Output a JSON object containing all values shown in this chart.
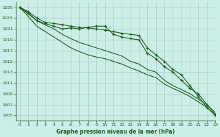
{
  "title": "Graphe pression niveau de la mer (hPa)",
  "background_color": "#cceee8",
  "grid_color": "#b0c8c8",
  "line_color": "#1a5c1a",
  "xlim": [
    -0.5,
    23
  ],
  "ylim": [
    1004,
    1026
  ],
  "yticks": [
    1005,
    1007,
    1009,
    1011,
    1013,
    1015,
    1017,
    1019,
    1021,
    1023,
    1025
  ],
  "xticks": [
    0,
    1,
    2,
    3,
    4,
    5,
    6,
    7,
    8,
    9,
    10,
    11,
    12,
    13,
    14,
    15,
    16,
    17,
    18,
    19,
    20,
    21,
    22,
    23
  ],
  "line1_x": [
    0,
    1,
    2,
    3,
    4,
    5,
    6,
    7,
    8,
    9,
    10,
    11,
    12,
    13,
    14,
    15,
    16,
    17,
    18,
    19,
    20,
    21,
    22,
    23
  ],
  "line1": [
    1025,
    1024.2,
    1023.0,
    1022.2,
    1022.0,
    1021.8,
    1021.5,
    1021.3,
    1021.2,
    1021.0,
    1020.8,
    1020.5,
    1020.2,
    1020.0,
    1019.8,
    1017.5,
    1016.2,
    1015.0,
    1013.5,
    1012.5,
    1010.5,
    1008.5,
    1006.5,
    1005.0
  ],
  "line2_x": [
    0,
    1,
    2,
    3,
    4,
    5,
    6,
    7,
    8,
    9,
    10,
    11,
    12,
    13,
    14,
    15,
    16,
    17,
    18,
    19,
    20,
    21,
    22,
    23
  ],
  "line2": [
    1025,
    1024.0,
    1022.5,
    1022.0,
    1021.5,
    1021.0,
    1021.2,
    1021.0,
    1021.3,
    1021.5,
    1021.5,
    1020.0,
    1019.5,
    1019.2,
    1019.0,
    1016.5,
    1015.5,
    1014.0,
    1013.0,
    1011.5,
    1010.0,
    1009.0,
    1007.0,
    1005.2
  ],
  "line3_x": [
    0,
    2,
    4,
    5,
    6,
    7,
    8,
    9,
    10,
    11,
    12,
    13,
    14,
    15,
    16,
    17,
    18,
    19,
    20,
    21,
    22,
    23
  ],
  "line3": [
    1025,
    1022.5,
    1021.0,
    1020.0,
    1019.2,
    1018.5,
    1018.0,
    1017.5,
    1017.0,
    1016.5,
    1016.0,
    1015.0,
    1014.5,
    1013.5,
    1013.0,
    1011.5,
    1010.5,
    1009.8,
    1009.0,
    1008.0,
    1007.0,
    1005.5
  ],
  "line4_x": [
    0,
    2,
    4,
    5,
    6,
    7,
    8,
    9,
    10,
    11,
    12,
    13,
    14,
    15,
    16,
    17,
    18,
    19,
    20,
    21,
    22,
    23
  ],
  "line4": [
    1025,
    1021.5,
    1019.5,
    1018.5,
    1017.5,
    1016.8,
    1016.2,
    1015.8,
    1015.5,
    1015.0,
    1014.5,
    1013.8,
    1013.2,
    1012.5,
    1012.0,
    1010.8,
    1010.0,
    1009.3,
    1008.5,
    1007.5,
    1006.5,
    1005.0
  ]
}
